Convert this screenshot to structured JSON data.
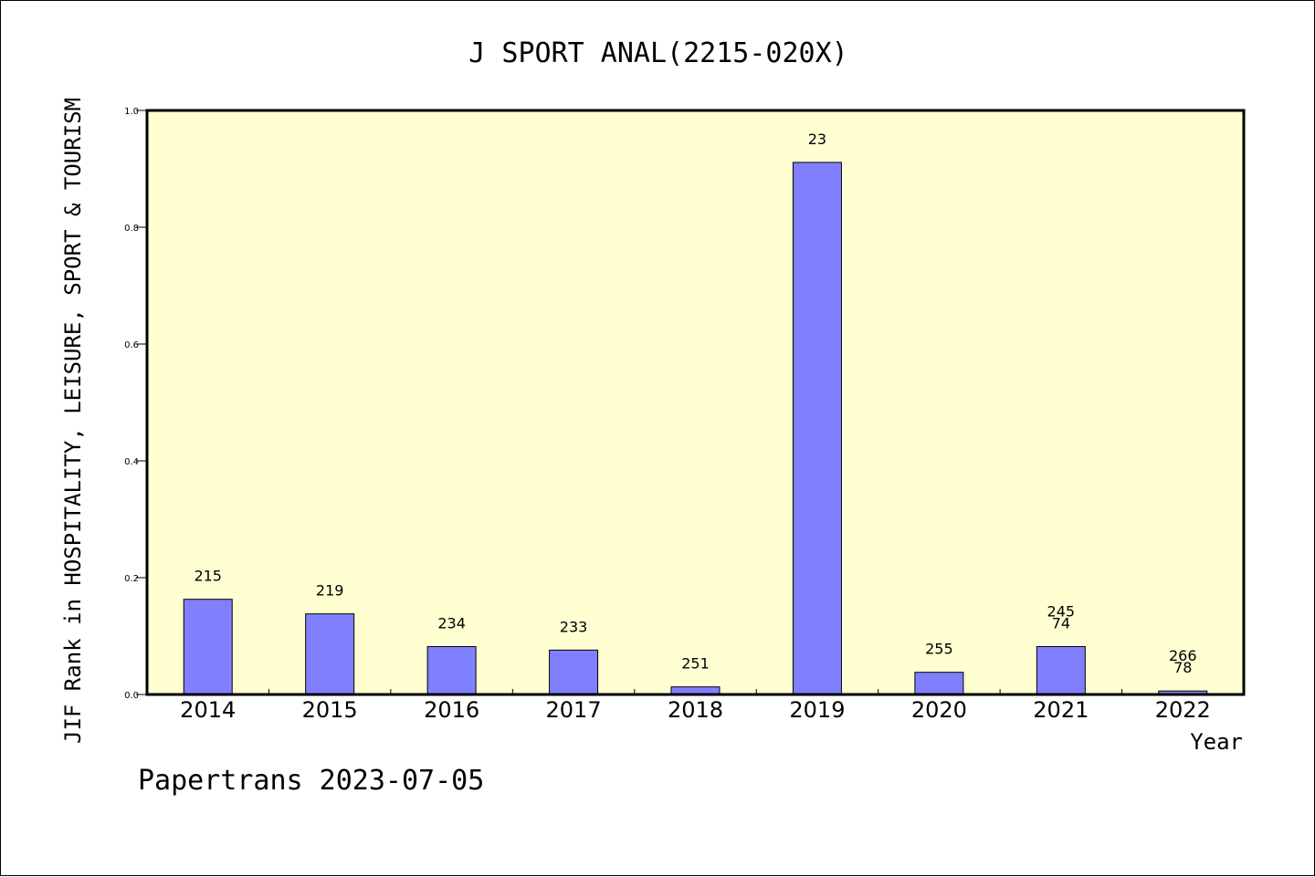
{
  "chart_data": {
    "type": "bar",
    "title": "J SPORT ANAL(2215-020X)",
    "xlabel": "Year",
    "ylabel": "JIF Rank in HOSPITALITY, LEISURE, SPORT & TOURISM",
    "ylim": [
      0,
      1.0
    ],
    "yticks": [
      "0.0",
      "0.2",
      "0.4",
      "0.6",
      "0.8",
      "1.0"
    ],
    "grid": false,
    "categories": [
      "2014",
      "2015",
      "2016",
      "2017",
      "2018",
      "2019",
      "2020",
      "2021",
      "2022"
    ],
    "values": [
      0.163,
      0.138,
      0.082,
      0.076,
      0.013,
      0.911,
      0.038,
      0.082,
      0.006
    ],
    "labels": [
      [
        "215"
      ],
      [
        "219"
      ],
      [
        "234"
      ],
      [
        "233"
      ],
      [
        "251"
      ],
      [
        "23"
      ],
      [
        "255"
      ],
      [
        "245",
        "74"
      ],
      [
        "266",
        "78"
      ]
    ],
    "colors": {
      "plot_background": "#ffffd2",
      "bar": "#8080ff"
    }
  },
  "footer": "Papertrans 2023-07-05"
}
